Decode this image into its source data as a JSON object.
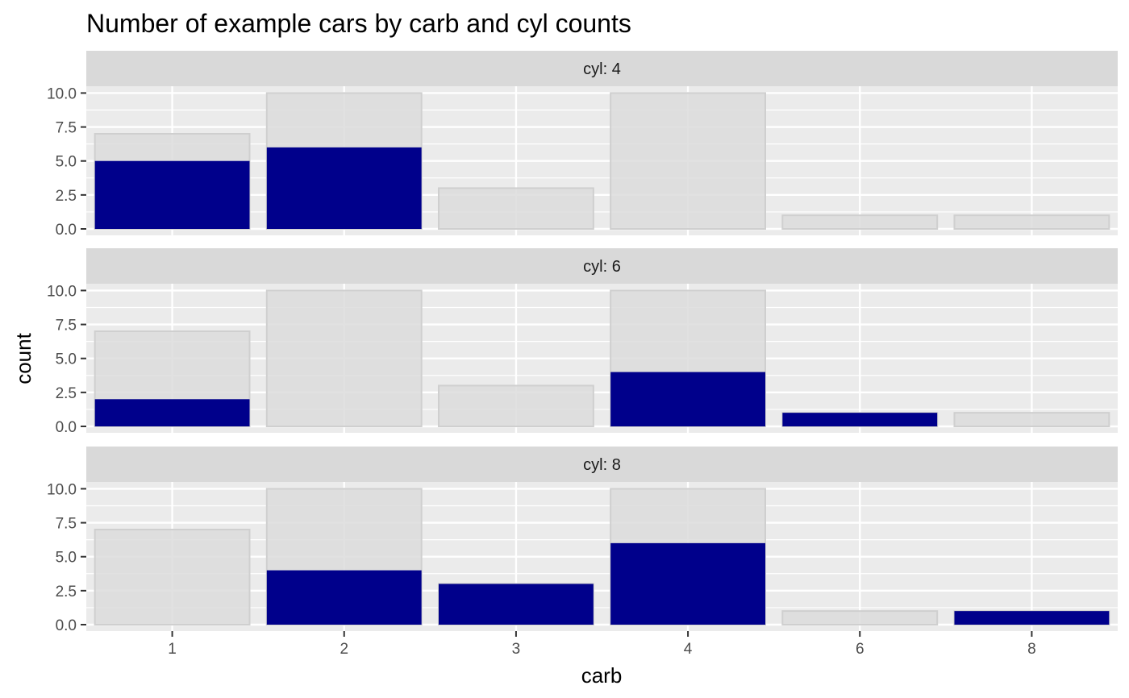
{
  "chart_data": {
    "type": "bar",
    "title": "Number of example cars by carb and cyl counts",
    "xlabel": "carb",
    "ylabel": "count",
    "categories": [
      "1",
      "2",
      "3",
      "4",
      "6",
      "8"
    ],
    "y_ticks": [
      "0.0",
      "2.5",
      "5.0",
      "7.5",
      "10.0"
    ],
    "ylim": [
      0,
      10.5
    ],
    "grid": true,
    "background_series": {
      "values": [
        7,
        10,
        3,
        10,
        1,
        1
      ],
      "color": "#dcdcdc"
    },
    "facets": [
      {
        "label": "cyl: 4",
        "values": [
          5,
          6,
          0,
          0,
          0,
          0
        ]
      },
      {
        "label": "cyl: 6",
        "values": [
          2,
          0,
          0,
          4,
          1,
          0
        ]
      },
      {
        "label": "cyl: 8",
        "values": [
          0,
          4,
          3,
          6,
          0,
          1
        ]
      }
    ],
    "colors": {
      "foreground": "#00008b",
      "panel": "#ebebeb",
      "strip": "#d9d9d9",
      "grid": "#ffffff"
    }
  }
}
